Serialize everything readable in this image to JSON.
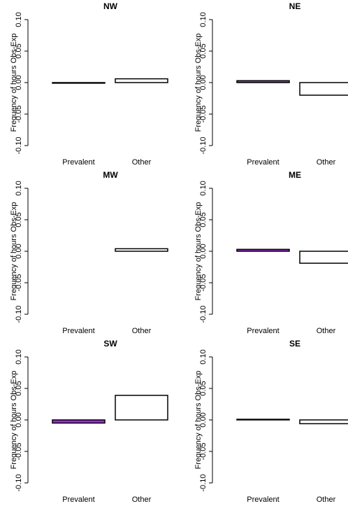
{
  "chart_data": [
    {
      "type": "bar",
      "title": "NW",
      "ylabel": "Frequency of hours Obs-Exp",
      "categories": [
        "Prevalent",
        "Other"
      ],
      "values": [
        -0.001,
        0.006
      ],
      "colors": [
        "#ffffff",
        "#ffffff"
      ],
      "ylim": [
        -0.1,
        0.1
      ],
      "yticks": [
        {
          "value": -0.1,
          "label": "-0.10"
        },
        {
          "value": -0.05,
          "label": "-0.05"
        },
        {
          "value": 0,
          "label": "0.00"
        },
        {
          "value": 0.05,
          "label": "0.05"
        },
        {
          "value": 0.1,
          "label": "0.10"
        }
      ]
    },
    {
      "type": "bar",
      "title": "NE",
      "ylabel": "Frequency of hours Obs-Exp",
      "categories": [
        "Prevalent",
        "Other"
      ],
      "values": [
        0.003,
        -0.02
      ],
      "colors": [
        "#9a2fd0",
        "#ffffff"
      ],
      "ylim": [
        -0.1,
        0.1
      ],
      "yticks": [
        {
          "value": -0.1,
          "label": "-0.10"
        },
        {
          "value": -0.05,
          "label": "-0.05"
        },
        {
          "value": 0,
          "label": "0.00"
        },
        {
          "value": 0.05,
          "label": "0.05"
        },
        {
          "value": 0.1,
          "label": "0.10"
        }
      ]
    },
    {
      "type": "bar",
      "title": "MW",
      "ylabel": "Frequency of hours Obs-Exp",
      "categories": [
        "Prevalent",
        "Other"
      ],
      "values": [
        0,
        0.004
      ],
      "colors": [
        "#ffffff",
        "#ffffff"
      ],
      "ylim": [
        -0.1,
        0.1
      ],
      "yticks": [
        {
          "value": -0.1,
          "label": "-0.10"
        },
        {
          "value": -0.05,
          "label": "-0.05"
        },
        {
          "value": 0,
          "label": "0.00"
        },
        {
          "value": 0.05,
          "label": "0.05"
        },
        {
          "value": 0.1,
          "label": "0.10"
        }
      ]
    },
    {
      "type": "bar",
      "title": "ME",
      "ylabel": "Frequency of hours Obs-Exp",
      "categories": [
        "Prevalent",
        "Other"
      ],
      "values": [
        0.003,
        -0.019
      ],
      "colors": [
        "#9a2fd0",
        "#ffffff"
      ],
      "ylim": [
        -0.1,
        0.1
      ],
      "yticks": [
        {
          "value": -0.1,
          "label": "-0.10"
        },
        {
          "value": -0.05,
          "label": "-0.05"
        },
        {
          "value": 0,
          "label": "0.00"
        },
        {
          "value": 0.05,
          "label": "0.05"
        },
        {
          "value": 0.1,
          "label": "0.10"
        }
      ]
    },
    {
      "type": "bar",
      "title": "SW",
      "ylabel": "Frequency of hours Obs-Exp",
      "categories": [
        "Prevalent",
        "Other"
      ],
      "values": [
        -0.005,
        0.039
      ],
      "colors": [
        "#9a2fd0",
        "#ffffff"
      ],
      "ylim": [
        -0.1,
        0.1
      ],
      "yticks": [
        {
          "value": -0.1,
          "label": "-0.10"
        },
        {
          "value": -0.05,
          "label": "-0.05"
        },
        {
          "value": 0,
          "label": "0.00"
        },
        {
          "value": 0.05,
          "label": "0.05"
        },
        {
          "value": 0.1,
          "label": "0.10"
        }
      ]
    },
    {
      "type": "bar",
      "title": "SE",
      "ylabel": "Frequency of hours Obs-Exp",
      "categories": [
        "Prevalent",
        "Other"
      ],
      "values": [
        0.001,
        -0.006
      ],
      "colors": [
        "#ffffff",
        "#ffffff"
      ],
      "ylim": [
        -0.1,
        0.1
      ],
      "yticks": [
        {
          "value": -0.1,
          "label": "-0.10"
        },
        {
          "value": -0.05,
          "label": "-0.05"
        },
        {
          "value": 0,
          "label": "0.00"
        },
        {
          "value": 0.05,
          "label": "0.05"
        },
        {
          "value": 0.1,
          "label": "0.10"
        }
      ]
    }
  ]
}
